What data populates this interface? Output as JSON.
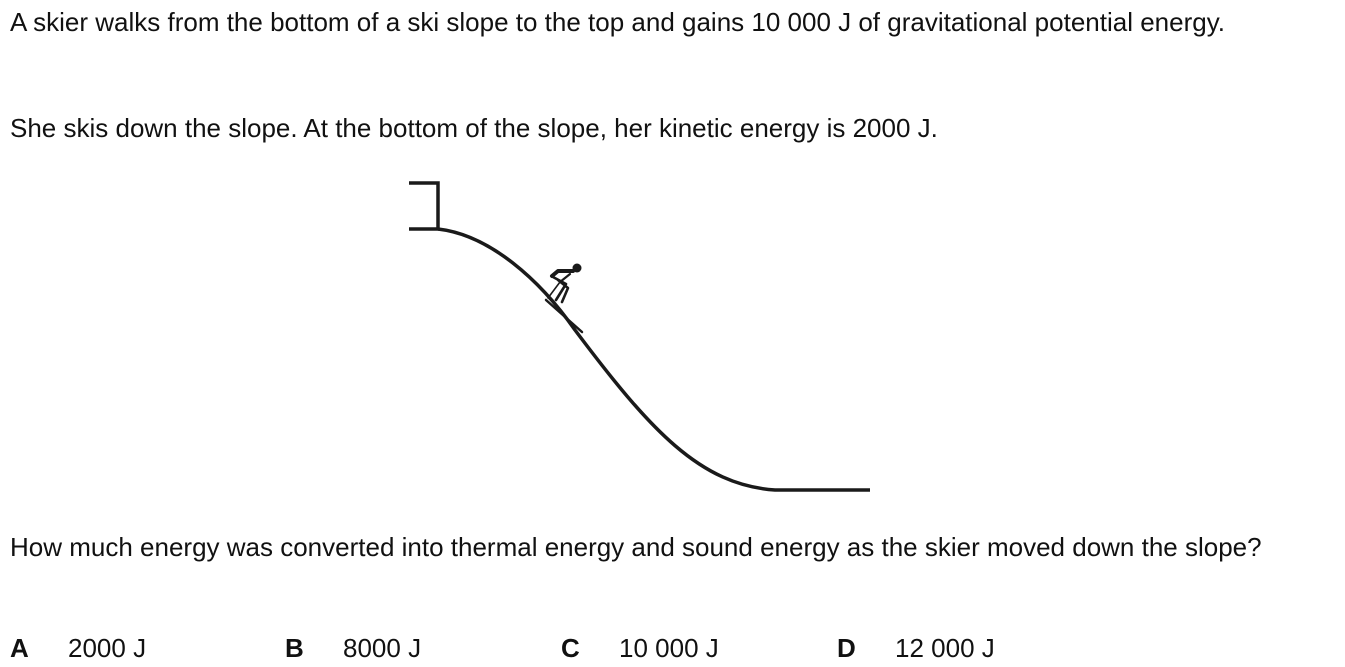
{
  "question": {
    "intro": "A skier walks from the bottom of a ski slope to the top and gains 10 000 J of gravitational potential energy.",
    "context": "She skis down the slope. At the bottom of the slope, her kinetic energy is 2000 J.",
    "prompt": "How much energy was converted into thermal energy and sound energy as the skier moved down the slope?"
  },
  "options": [
    {
      "letter": "A",
      "value": "2000 J"
    },
    {
      "letter": "B",
      "value": "8000 J"
    },
    {
      "letter": "C",
      "value": "10 000 J"
    },
    {
      "letter": "D",
      "value": "12 000 J"
    }
  ]
}
